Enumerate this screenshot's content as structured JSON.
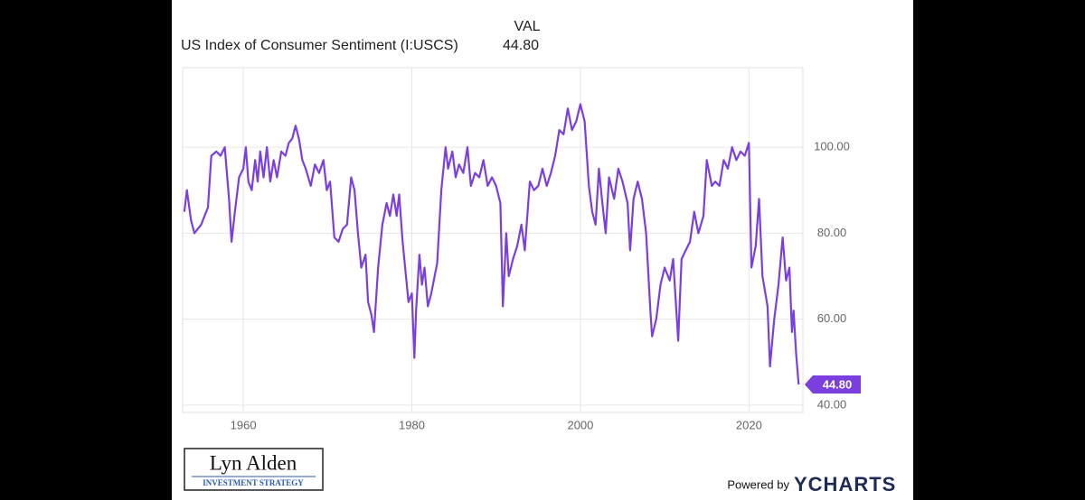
{
  "chart_data": {
    "type": "line",
    "value_header": "VAL",
    "current_value": {
      "value": 44.8,
      "label": "44.80"
    },
    "branding": {
      "logo_name": "Lyn Alden",
      "logo_tagline": "INVESTMENT STRATEGY",
      "powered_by": "Powered by",
      "provider": "YCHARTS"
    },
    "x": [
      1953.0,
      1953.3,
      1953.8,
      1954.2,
      1955,
      1955.8,
      1956.2,
      1956.8,
      1957.3,
      1957.8,
      1958.3,
      1958.6,
      1959,
      1959.5,
      1960,
      1960.3,
      1960.6,
      1961,
      1961.4,
      1961.7,
      1962,
      1962.4,
      1962.8,
      1963.2,
      1963.6,
      1964,
      1964.5,
      1965,
      1965.4,
      1965.8,
      1966.2,
      1966.6,
      1967,
      1967.4,
      1968,
      1968.5,
      1969,
      1969.5,
      1969.9,
      1970.3,
      1970.8,
      1971.3,
      1971.8,
      1972.3,
      1972.8,
      1973.2,
      1973.6,
      1974,
      1974.5,
      1974.8,
      1975.2,
      1975.5,
      1976,
      1976.5,
      1977,
      1977.4,
      1977.8,
      1978.2,
      1978.5,
      1978.9,
      1979.3,
      1979.6,
      1980,
      1980.3,
      1980.5,
      1980.9,
      1981.2,
      1981.5,
      1981.9,
      1982.3,
      1982.7,
      1983,
      1983.5,
      1984,
      1984.3,
      1984.8,
      1985.2,
      1985.6,
      1986.1,
      1986.6,
      1987,
      1987.5,
      1988,
      1988.5,
      1989,
      1989.5,
      1990,
      1990.5,
      1990.8,
      1991.2,
      1991.5,
      1992,
      1992.5,
      1993,
      1993.4,
      1994,
      1994.5,
      1995,
      1995.5,
      1996,
      1996.5,
      1997,
      1997.5,
      1998,
      1998.5,
      1999,
      1999.5,
      2000,
      2000.5,
      2001,
      2001.4,
      2001.8,
      2002.2,
      2002.6,
      2003,
      2003.4,
      2004,
      2004.5,
      2005,
      2005.6,
      2005.9,
      2006.3,
      2006.8,
      2007.3,
      2007.8,
      2008.3,
      2008.5,
      2009,
      2009.5,
      2010,
      2010.6,
      2011,
      2011.6,
      2012,
      2012.5,
      2013,
      2013.5,
      2014,
      2014.6,
      2015,
      2015.6,
      2016,
      2016.5,
      2017,
      2017.5,
      2018,
      2018.5,
      2019,
      2019.5,
      2020,
      2020.3,
      2020.8,
      2021.2,
      2021.6,
      2022.2,
      2022.5,
      2023,
      2023.5,
      2024,
      2024.4,
      2024.8,
      2025.1,
      2025.3,
      2025.6,
      2025.9
    ],
    "series": [
      {
        "name": "US Index of Consumer Sentiment (I:USCS)",
        "color": "#7b3fe0",
        "values": [
          85,
          90,
          83,
          80,
          82,
          86,
          98,
          99,
          98,
          100,
          88,
          78,
          85,
          93,
          95,
          100,
          92,
          90,
          97,
          92,
          99,
          93,
          100,
          92,
          97,
          93,
          99,
          98,
          101,
          102,
          105,
          102,
          97,
          95,
          91,
          96,
          94,
          97,
          90,
          92,
          79,
          78,
          81,
          82,
          93,
          90,
          80,
          72,
          75,
          64,
          61,
          57,
          72,
          82,
          87,
          84,
          89,
          84,
          89,
          78,
          70,
          64,
          66,
          51,
          62,
          75,
          68,
          72,
          63,
          66,
          70,
          73,
          90,
          100,
          95,
          99,
          93,
          96,
          94,
          100,
          91,
          94,
          93,
          97,
          91,
          93,
          91,
          87,
          63,
          80,
          70,
          74,
          77,
          82,
          76,
          92,
          90,
          91,
          95,
          91,
          94,
          98,
          104,
          103,
          109,
          104,
          106,
          110,
          106,
          91,
          85,
          82,
          95,
          87,
          80,
          93,
          88,
          95,
          92,
          87,
          76,
          88,
          92,
          88,
          80,
          62,
          56,
          60,
          68,
          72,
          69,
          74,
          55,
          74,
          76,
          78,
          85,
          80,
          84,
          97,
          91,
          92,
          91,
          97,
          95,
          100,
          97,
          99,
          98,
          101,
          72,
          77,
          88,
          70,
          63,
          49,
          60,
          68,
          79,
          69,
          72,
          57,
          62,
          52,
          44.8
        ]
      }
    ],
    "xlim": [
      1952.8,
      2026.4
    ],
    "xticks": [
      1960,
      1980,
      2000,
      2020
    ],
    "ylim": [
      38.3,
      118.5
    ],
    "yticks": [
      {
        "value": 40,
        "label": "40.00"
      },
      {
        "value": 60,
        "label": "60.00"
      },
      {
        "value": 80,
        "label": "80.00"
      },
      {
        "value": 100,
        "label": "100.00"
      }
    ],
    "grid": true
  }
}
